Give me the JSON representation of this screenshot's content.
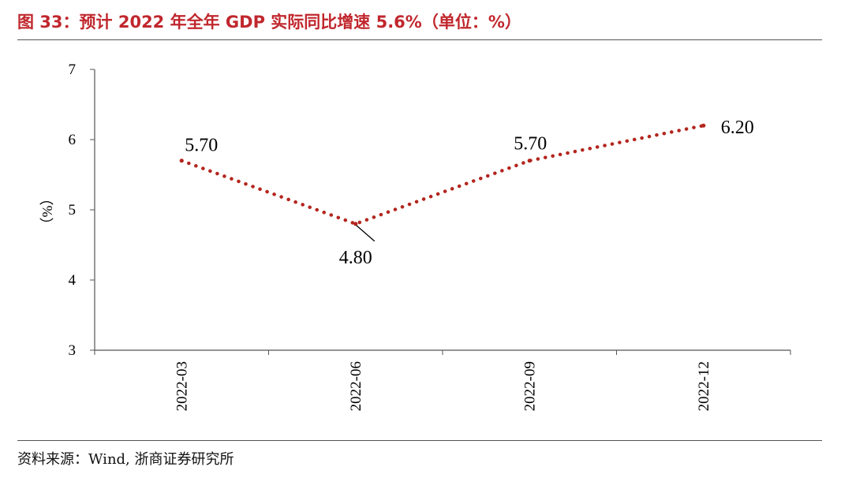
{
  "header": {
    "figure_title": "图 33：预计 2022 年全年 GDP 实际同比增速 5.6%（单位：%）"
  },
  "footer": {
    "source": "资料来源：Wind, 浙商证券研究所"
  },
  "colors": {
    "title": "#c0272d",
    "series": "#b3261e",
    "axis": "#555555"
  },
  "chart_data": {
    "type": "line",
    "title": "",
    "xlabel": "",
    "ylabel": "（%）",
    "categories": [
      "2022-03",
      "2022-06",
      "2022-09",
      "2022-12"
    ],
    "series": [
      {
        "values": [
          5.7,
          4.8,
          5.7,
          6.2
        ],
        "labels": [
          "5.70",
          "4.80",
          "5.70",
          "6.20"
        ],
        "style": "dotted"
      }
    ],
    "ylim": [
      3,
      7
    ],
    "yticks": [
      "3",
      "4",
      "5",
      "6",
      "7"
    ],
    "grid": false,
    "legend": "none"
  }
}
